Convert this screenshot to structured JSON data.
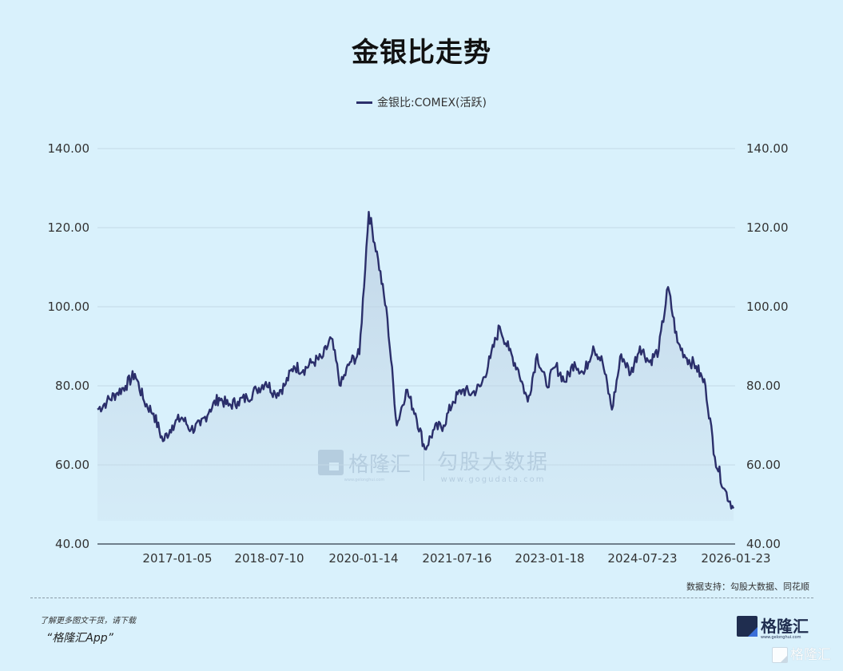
{
  "title": "金银比走势",
  "legend": {
    "label": "金银比:COMEX(活跃)",
    "color": "#2b2f6b"
  },
  "source": "数据支持：勾股大数据、同花顺",
  "footer": {
    "promo_line": "了解更多图文干货，请下载",
    "promo_app": "“格隆汇App”",
    "logo_text": "格隆汇",
    "logo_url": "www.gelonghui.com",
    "faint_logo_text": "格隆汇"
  },
  "watermark": {
    "brand1": "格隆汇",
    "brand1_url": "www.gelonghui.com",
    "brand2": "勾股大数据",
    "brand2_url": "www.gogudata.com"
  },
  "chart_data": {
    "type": "line",
    "title": "金银比走势",
    "series_name": "金银比:COMEX(活跃)",
    "xlabel": "",
    "ylabel": "",
    "ylim": [
      40,
      140
    ],
    "yticks": [
      "40.00",
      "60.00",
      "80.00",
      "100.00",
      "120.00",
      "140.00"
    ],
    "yticks_right": [
      "40.00",
      "60.00",
      "80.00",
      "100.00",
      "120.00",
      "140.00"
    ],
    "xticks": [
      "2017-01-05",
      "2018-07-10",
      "2020-01-14",
      "2021-07-16",
      "2023-01-18",
      "2024-07-23",
      "2026-01-23"
    ],
    "grid": true,
    "fill": true,
    "x": [
      "2015-12",
      "2016-02",
      "2016-04",
      "2016-06",
      "2016-07",
      "2016-09",
      "2016-11",
      "2017-01",
      "2017-03",
      "2017-05",
      "2017-07",
      "2017-09",
      "2017-11",
      "2018-01",
      "2018-03",
      "2018-05",
      "2018-07",
      "2018-09",
      "2018-11",
      "2019-01",
      "2019-03",
      "2019-05",
      "2019-07",
      "2019-08",
      "2019-10",
      "2019-12",
      "2020-02",
      "2020-03",
      "2020-04",
      "2020-05",
      "2020-06",
      "2020-07",
      "2020-08",
      "2020-10",
      "2020-12",
      "2021-02",
      "2021-04",
      "2021-06",
      "2021-08",
      "2021-10",
      "2021-12",
      "2022-02",
      "2022-04",
      "2022-06",
      "2022-08",
      "2022-09",
      "2022-11",
      "2023-01",
      "2023-03",
      "2023-05",
      "2023-07",
      "2023-09",
      "2023-11",
      "2024-01",
      "2024-03",
      "2024-05",
      "2024-07",
      "2024-09",
      "2024-11",
      "2025-01",
      "2025-03",
      "2025-04",
      "2025-05",
      "2025-07",
      "2025-09",
      "2025-10",
      "2025-11",
      "2025-12",
      "2026-01"
    ],
    "values": [
      74,
      76,
      78,
      80,
      83,
      76,
      73,
      66,
      70,
      72,
      69,
      70,
      74,
      77,
      75,
      76,
      77,
      79,
      81,
      78,
      80,
      85,
      84,
      86,
      87,
      92,
      80,
      86,
      88,
      124,
      112,
      97,
      70,
      79,
      73,
      64,
      69,
      70,
      76,
      79,
      78,
      80,
      87,
      95,
      89,
      84,
      76,
      88,
      80,
      85,
      81,
      86,
      83,
      90,
      86,
      74,
      88,
      83,
      90,
      86,
      89,
      105,
      91,
      87,
      85,
      80,
      62,
      54,
      49
    ],
    "legend_position": "top"
  }
}
